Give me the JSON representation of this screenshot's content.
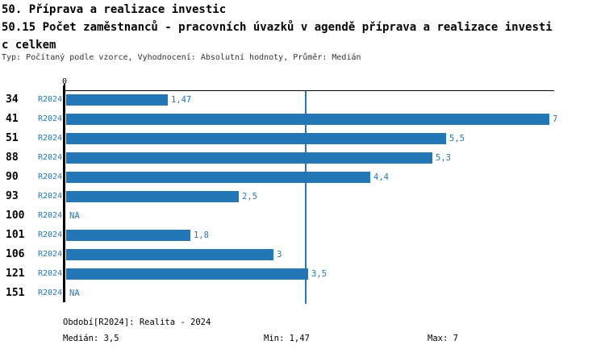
{
  "header": {
    "title": "50. Příprava a realizace investic",
    "subtitle_line1": "50.15 Počet zaměstnanců - pracovních úvazků v agendě příprava a realizace investi",
    "subtitle_line2": "c celkem",
    "meta": "Typ: Počítaný podle vzorce, Vyhodnocení: Absolutní hodnoty, Průměr: Medián"
  },
  "colors": {
    "bar": "#2277b4",
    "accent_text": "#2277b4",
    "axis": "#000000",
    "median_line": "#2277b4"
  },
  "chart_data": {
    "type": "bar",
    "orientation": "horizontal",
    "title": "50. Příprava a realizace investic",
    "subtitle": "50.15 Počet zaměstnanců - pracovních úvazků v agendě příprava a realizace investic celkem",
    "categories": [
      "34",
      "41",
      "51",
      "88",
      "90",
      "93",
      "100",
      "101",
      "106",
      "121",
      "151"
    ],
    "series_label": "R2024",
    "values": [
      1.47,
      7,
      5.5,
      5.3,
      4.4,
      2.5,
      null,
      1.8,
      3,
      3.5,
      null
    ],
    "value_labels": [
      "1,47",
      "7",
      "5,5",
      "5,3",
      "4,4",
      "2,5",
      "NA",
      "1,8",
      "3",
      "3,5",
      "NA"
    ],
    "x_origin_label": "0",
    "xlim": [
      0,
      7.07
    ],
    "grid": false,
    "median": 3.5,
    "min": 1.47,
    "max": 7,
    "legend_position": "none"
  },
  "footer": {
    "period": "Období[R2024]: Realita - 2024",
    "median": "Medián: 3,5",
    "min": "Min: 1,47",
    "max": "Max: 7"
  }
}
